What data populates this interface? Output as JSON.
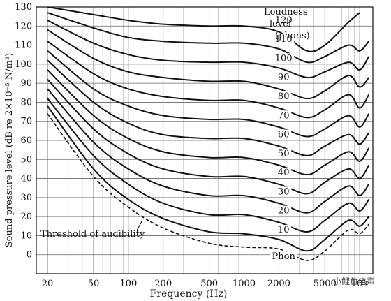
{
  "chart_data": {
    "type": "line",
    "title": "",
    "xlabel": "Frequency (Hz)",
    "ylabel": "Sound pressure level (dB re 2×10⁻⁵ N/m²)",
    "x_scale": "log",
    "xlim": [
      16,
      13000
    ],
    "ylim": [
      -10,
      130
    ],
    "x_ticks": [
      {
        "value": 20,
        "label": "20"
      },
      {
        "value": 50,
        "label": "50"
      },
      {
        "value": 100,
        "label": "100"
      },
      {
        "value": 200,
        "label": "200"
      },
      {
        "value": 500,
        "label": "500"
      },
      {
        "value": 1000,
        "label": "1000"
      },
      {
        "value": 2000,
        "label": "2000"
      },
      {
        "value": 5000,
        "label": "5000"
      },
      {
        "value": 10000,
        "label": "10k"
      }
    ],
    "y_ticks": [
      0,
      10,
      20,
      30,
      40,
      50,
      60,
      70,
      80,
      90,
      100,
      110,
      120,
      130
    ],
    "grid": true,
    "legend_title": [
      "Loudness",
      "level",
      "(phons)"
    ],
    "threshold_label": "Threshold of audibility",
    "threshold_curve_label": "Phon",
    "watermark": "小鲤鱼电声",
    "series": [
      {
        "name": "120",
        "x": [
          20,
          50,
          100,
          200,
          500,
          1000,
          2000,
          3500,
          5000,
          8000,
          10000
        ],
        "y": [
          130,
          126,
          123,
          121,
          120,
          120,
          117,
          107,
          110,
          122,
          127
        ]
      },
      {
        "name": "110",
        "x": [
          20,
          50,
          100,
          200,
          500,
          1000,
          2000,
          3500,
          5000,
          8000,
          10000,
          12000
        ],
        "y": [
          127,
          119,
          114,
          112,
          111,
          111,
          108,
          101,
          104,
          110,
          107,
          112
        ]
      },
      {
        "name": "100",
        "x": [
          20,
          50,
          100,
          200,
          500,
          1000,
          2000,
          3500,
          5000,
          8000,
          10000,
          12000
        ],
        "y": [
          123,
          111,
          105,
          102,
          101,
          101,
          98,
          93,
          96,
          101,
          97,
          104
        ]
      },
      {
        "name": "90",
        "x": [
          20,
          50,
          100,
          200,
          500,
          1000,
          2000,
          3500,
          5000,
          8000,
          10000,
          12000
        ],
        "y": [
          118,
          103,
          96,
          93,
          91,
          91,
          87,
          82,
          86,
          94,
          88,
          93
        ]
      },
      {
        "name": "80",
        "x": [
          20,
          50,
          100,
          200,
          500,
          1000,
          2000,
          3500,
          5000,
          8000,
          10000,
          12000
        ],
        "y": [
          112,
          95,
          87,
          83,
          81,
          81,
          77,
          72,
          76,
          84,
          77,
          84
        ]
      },
      {
        "name": "70",
        "x": [
          20,
          50,
          100,
          200,
          500,
          1000,
          2000,
          3500,
          5000,
          8000,
          10000,
          12000
        ],
        "y": [
          107,
          87,
          78,
          73,
          71,
          71,
          67,
          62,
          66,
          73,
          67,
          74
        ]
      },
      {
        "name": "60",
        "x": [
          20,
          50,
          100,
          200,
          500,
          1000,
          2000,
          3500,
          5000,
          8000,
          10000,
          12000
        ],
        "y": [
          102,
          80,
          69,
          63,
          61,
          61,
          57,
          52,
          57,
          63,
          58,
          64
        ]
      },
      {
        "name": "50",
        "x": [
          20,
          50,
          100,
          200,
          500,
          1000,
          2000,
          3500,
          5000,
          8000,
          10000,
          12000
        ],
        "y": [
          97,
          73,
          61,
          54,
          51,
          51,
          47,
          42,
          47,
          54,
          49,
          56
        ]
      },
      {
        "name": "40",
        "x": [
          20,
          50,
          100,
          200,
          500,
          1000,
          2000,
          3500,
          5000,
          8000,
          10000,
          12000
        ],
        "y": [
          92,
          66,
          53,
          45,
          41,
          41,
          37,
          32,
          38,
          45,
          40,
          47
        ]
      },
      {
        "name": "30",
        "x": [
          20,
          50,
          100,
          200,
          500,
          1000,
          2000,
          3500,
          5000,
          8000,
          10000,
          12000
        ],
        "y": [
          87,
          59,
          45,
          36,
          31,
          31,
          27,
          22,
          28,
          36,
          31,
          37
        ]
      },
      {
        "name": "20",
        "x": [
          20,
          50,
          100,
          200,
          500,
          1000,
          2000,
          3500,
          5000,
          8000,
          10000,
          12000
        ],
        "y": [
          82,
          52,
          37,
          27,
          21,
          21,
          17,
          12,
          18,
          27,
          23,
          29
        ]
      },
      {
        "name": "10",
        "x": [
          20,
          50,
          100,
          200,
          500,
          1000,
          2000,
          3500,
          5000,
          8000,
          10000,
          12000
        ],
        "y": [
          78,
          45,
          29,
          19,
          12,
          11,
          8,
          2,
          8,
          18,
          15,
          20
        ]
      }
    ],
    "threshold_curve": {
      "x": [
        20,
        50,
        100,
        200,
        500,
        1000,
        2000,
        3500,
        5000,
        8000,
        10000,
        12000
      ],
      "y": [
        74,
        41,
        25,
        14,
        6,
        4,
        3,
        -3,
        2,
        13,
        11,
        16
      ]
    },
    "curve_labels": [
      {
        "text": "120",
        "x": 2200,
        "y": 122
      },
      {
        "text": "110",
        "x": 2200,
        "y": 112
      },
      {
        "text": "100",
        "x": 2200,
        "y": 102
      },
      {
        "text": "90",
        "x": 2200,
        "y": 92
      },
      {
        "text": "80",
        "x": 2200,
        "y": 82
      },
      {
        "text": "70",
        "x": 2200,
        "y": 72
      },
      {
        "text": "60",
        "x": 2200,
        "y": 62
      },
      {
        "text": "50",
        "x": 2200,
        "y": 52
      },
      {
        "text": "40",
        "x": 2200,
        "y": 42
      },
      {
        "text": "30",
        "x": 2200,
        "y": 32
      },
      {
        "text": "20",
        "x": 2200,
        "y": 22
      },
      {
        "text": "10",
        "x": 2200,
        "y": 12
      },
      {
        "text": "Phon",
        "x": 2200,
        "y": -2
      }
    ]
  }
}
